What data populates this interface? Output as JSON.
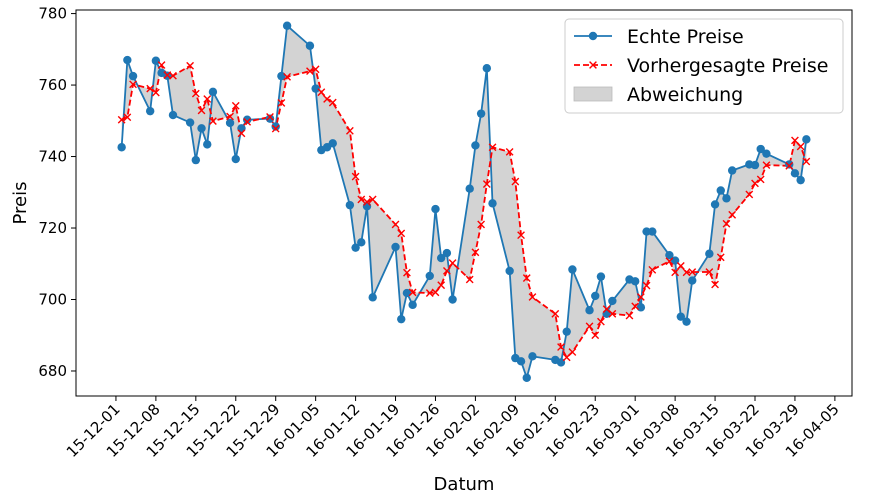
{
  "chart_data": {
    "type": "line",
    "xlabel": "Datum",
    "ylabel": "Preis",
    "ylim": [
      673,
      781
    ],
    "xlim": [
      "2015-11-24",
      "2016-04-08"
    ],
    "grid": false,
    "legend_position": "top-right",
    "y_ticks": [
      680,
      700,
      720,
      740,
      760,
      780
    ],
    "x_ticks": [
      {
        "date": "2015-12-01",
        "label": "15-12-01"
      },
      {
        "date": "2015-12-08",
        "label": "15-12-08"
      },
      {
        "date": "2015-12-15",
        "label": "15-12-15"
      },
      {
        "date": "2015-12-22",
        "label": "15-12-22"
      },
      {
        "date": "2015-12-29",
        "label": "15-12-29"
      },
      {
        "date": "2016-01-05",
        "label": "16-01-05"
      },
      {
        "date": "2016-01-12",
        "label": "16-01-12"
      },
      {
        "date": "2016-01-19",
        "label": "16-01-19"
      },
      {
        "date": "2016-01-26",
        "label": "16-01-26"
      },
      {
        "date": "2016-02-02",
        "label": "16-02-02"
      },
      {
        "date": "2016-02-09",
        "label": "16-02-09"
      },
      {
        "date": "2016-02-16",
        "label": "16-02-16"
      },
      {
        "date": "2016-02-23",
        "label": "16-02-23"
      },
      {
        "date": "2016-03-01",
        "label": "16-03-01"
      },
      {
        "date": "2016-03-08",
        "label": "16-03-08"
      },
      {
        "date": "2016-03-15",
        "label": "16-03-15"
      },
      {
        "date": "2016-03-22",
        "label": "16-03-22"
      },
      {
        "date": "2016-03-29",
        "label": "16-03-29"
      },
      {
        "date": "2016-04-05",
        "label": "16-04-05"
      }
    ],
    "x": [
      "2015-12-02",
      "2015-12-03",
      "2015-12-04",
      "2015-12-07",
      "2015-12-08",
      "2015-12-09",
      "2015-12-10",
      "2015-12-11",
      "2015-12-14",
      "2015-12-15",
      "2015-12-16",
      "2015-12-17",
      "2015-12-18",
      "2015-12-21",
      "2015-12-22",
      "2015-12-23",
      "2015-12-24",
      "2015-12-28",
      "2015-12-29",
      "2015-12-30",
      "2015-12-31",
      "2016-01-04",
      "2016-01-05",
      "2016-01-06",
      "2016-01-07",
      "2016-01-08",
      "2016-01-11",
      "2016-01-12",
      "2016-01-13",
      "2016-01-14",
      "2016-01-15",
      "2016-01-19",
      "2016-01-20",
      "2016-01-21",
      "2016-01-22",
      "2016-01-25",
      "2016-01-26",
      "2016-01-27",
      "2016-01-28",
      "2016-01-29",
      "2016-02-01",
      "2016-02-02",
      "2016-02-03",
      "2016-02-04",
      "2016-02-05",
      "2016-02-08",
      "2016-02-09",
      "2016-02-10",
      "2016-02-11",
      "2016-02-12",
      "2016-02-16",
      "2016-02-17",
      "2016-02-18",
      "2016-02-19",
      "2016-02-22",
      "2016-02-23",
      "2016-02-24",
      "2016-02-25",
      "2016-02-26",
      "2016-02-29",
      "2016-03-01",
      "2016-03-02",
      "2016-03-03",
      "2016-03-04",
      "2016-03-07",
      "2016-03-08",
      "2016-03-09",
      "2016-03-10",
      "2016-03-11",
      "2016-03-14",
      "2016-03-15",
      "2016-03-16",
      "2016-03-17",
      "2016-03-18",
      "2016-03-21",
      "2016-03-22",
      "2016-03-23",
      "2016-03-24",
      "2016-03-28",
      "2016-03-29",
      "2016-03-30",
      "2016-03-31"
    ],
    "series": [
      {
        "name": "Echte Preise",
        "color": "#1f77b4",
        "style": "solid line with circle markers",
        "values": [
          742.6,
          767.0,
          762.5,
          752.7,
          766.8,
          763.4,
          762.6,
          751.6,
          749.5,
          739.0,
          747.9,
          743.4,
          758.1,
          749.4,
          739.3,
          747.9,
          750.3,
          750.6,
          748.4,
          762.5,
          776.6,
          771.0,
          759.0,
          741.8,
          742.6,
          743.7,
          726.4,
          714.5,
          716.0,
          726.1,
          700.6,
          714.7,
          694.5,
          701.8,
          698.5,
          706.6,
          725.3,
          711.6,
          713.0,
          700.0,
          731.0,
          743.1,
          752.0,
          764.7,
          726.9,
          708.0,
          683.6,
          682.7,
          678.1,
          684.1,
          683.1,
          682.4,
          691.0,
          708.4,
          697.0,
          701.0,
          706.4,
          696.0,
          699.6,
          705.6,
          705.1,
          697.8,
          719.0,
          719.0,
          712.4,
          710.9,
          695.2,
          693.8,
          705.3,
          712.8,
          726.6,
          730.5,
          728.3,
          736.1,
          737.8,
          737.6,
          742.1,
          740.8,
          737.8,
          735.3,
          733.4,
          744.8
        ]
      },
      {
        "name": "Vorhergesagte Preise",
        "color": "#ff0000",
        "style": "dashed line with x markers",
        "values": [
          750.3,
          751.0,
          760.2,
          759.0,
          757.9,
          765.6,
          762.8,
          762.6,
          765.4,
          757.6,
          752.9,
          756.1,
          749.9,
          751.2,
          754.2,
          746.5,
          749.7,
          751.1,
          747.8,
          755.0,
          762.3,
          763.9,
          764.4,
          758.0,
          756.1,
          755.1,
          747.2,
          734.4,
          728.0,
          727.3,
          728.0,
          721.0,
          718.5,
          707.5,
          702.0,
          701.8,
          702.0,
          704.0,
          708.0,
          710.2,
          705.6,
          713.2,
          721.0,
          732.3,
          742.6,
          741.3,
          733.0,
          718.0,
          706.0,
          700.7,
          696.0,
          686.7,
          683.8,
          685.3,
          692.5,
          690.0,
          693.8,
          697.3,
          696.0,
          695.5,
          698.1,
          700.7,
          703.9,
          708.3,
          710.7,
          707.6,
          709.4,
          707.6,
          707.7,
          707.7,
          704.2,
          711.8,
          721.2,
          723.7,
          729.4,
          732.5,
          733.6,
          737.6,
          737.4,
          744.5,
          742.8,
          738.6
        ]
      }
    ],
    "fill_between": {
      "name": "Abweichung",
      "color": "#d3d3d3",
      "between": [
        "Echte Preise",
        "Vorhergesagte Preise"
      ]
    },
    "legend": [
      {
        "label": "Echte Preise",
        "kind": "line-circle",
        "color": "#1f77b4"
      },
      {
        "label": "Vorhergesagte Preise",
        "kind": "dashed-x",
        "color": "#ff0000"
      },
      {
        "label": "Abweichung",
        "kind": "patch",
        "color": "#d3d3d3"
      }
    ]
  }
}
